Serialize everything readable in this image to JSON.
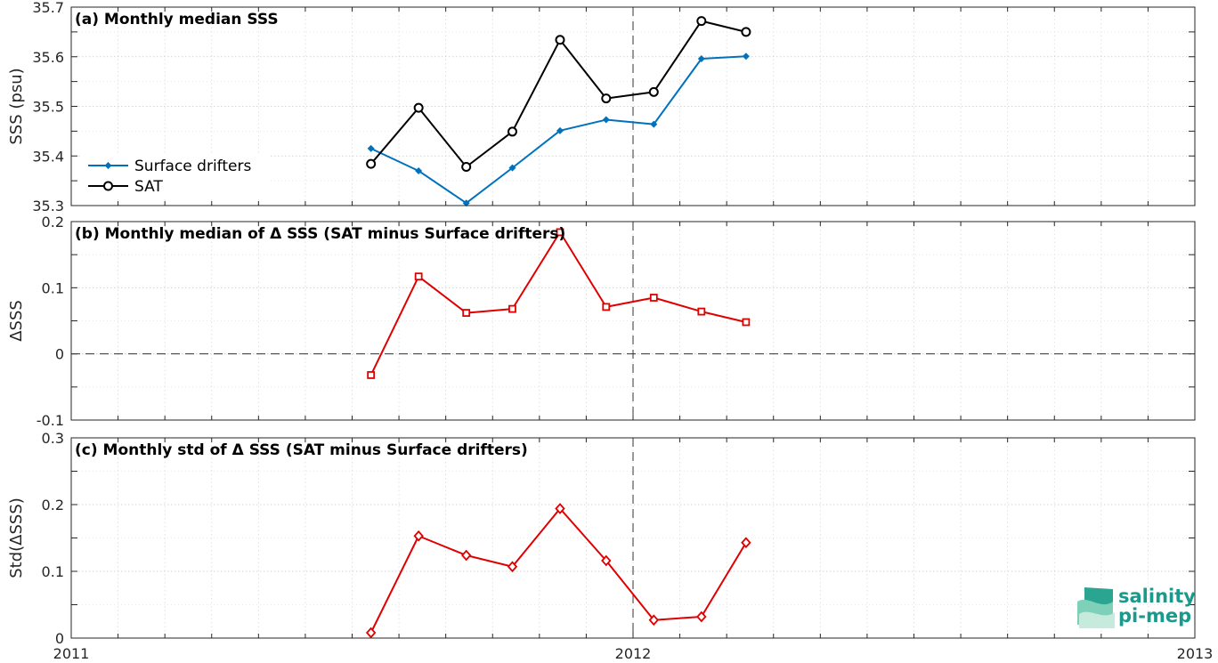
{
  "colors": {
    "drifters": "#0072bd",
    "sat": "#000000",
    "delta": "#e00000",
    "logo": "#1a9a8c"
  },
  "x_ticks": [
    "2011",
    "2012",
    "2013"
  ],
  "logo": {
    "line1": "salinity",
    "line2": "pi-mep"
  },
  "chart_data": [
    {
      "type": "line",
      "title": "(a) Monthly median SSS",
      "ylabel": "SSS (psu)",
      "ylim": [
        35.3,
        35.7
      ],
      "yticks": [
        "35.3",
        "35.4",
        "35.5",
        "35.6",
        "35.7"
      ],
      "xlim": [
        "2011-01-01",
        "2013-01-01"
      ],
      "grid": true,
      "legend_position": "center-left",
      "x": [
        "2011-07-15",
        "2011-08-15",
        "2011-09-15",
        "2011-10-15",
        "2011-11-15",
        "2011-12-15",
        "2012-01-15",
        "2012-02-15",
        "2012-03-15",
        "2012-04-15"
      ],
      "series": [
        {
          "name": "Surface drifters",
          "marker": "diamond-filled",
          "values": [
            35.415,
            35.37,
            35.305,
            35.376,
            35.451,
            35.473,
            35.464,
            35.596,
            35.601,
            null
          ]
        },
        {
          "name": "SAT",
          "marker": "circle-open",
          "values": [
            35.384,
            35.497,
            35.378,
            35.449,
            35.634,
            35.516,
            35.529,
            35.672,
            35.65,
            null
          ]
        }
      ]
    },
    {
      "type": "line",
      "title": "(b) Monthly median of Δ SSS (SAT minus Surface drifters)",
      "ylabel": "ΔSSS",
      "ylim": [
        -0.1,
        0.2
      ],
      "yticks": [
        "-0.1",
        "0",
        "0.1",
        "0.2"
      ],
      "xlim": [
        "2011-01-01",
        "2013-01-01"
      ],
      "grid": true,
      "reference_line": 0,
      "x": [
        "2011-07-15",
        "2011-08-15",
        "2011-09-15",
        "2011-10-15",
        "2011-11-15",
        "2011-12-15",
        "2012-01-15",
        "2012-02-15",
        "2012-03-15"
      ],
      "series": [
        {
          "marker": "square-open",
          "values": [
            -0.032,
            0.117,
            0.062,
            0.068,
            0.184,
            0.071,
            0.085,
            0.064,
            0.048
          ]
        }
      ]
    },
    {
      "type": "line",
      "title": "(c) Monthly std of Δ SSS (SAT minus Surface drifters)",
      "ylabel": "Std(ΔSSS)",
      "ylim": [
        0,
        0.3
      ],
      "yticks": [
        "0",
        "0.1",
        "0.2",
        "0.3"
      ],
      "xlim": [
        "2011-01-01",
        "2013-01-01"
      ],
      "grid": true,
      "x": [
        "2011-07-15",
        "2011-08-15",
        "2011-09-15",
        "2011-10-15",
        "2011-11-15",
        "2011-12-15",
        "2012-01-15",
        "2012-02-15",
        "2012-03-15"
      ],
      "series": [
        {
          "marker": "diamond-open",
          "values": [
            0.008,
            0.153,
            0.124,
            0.107,
            0.194,
            0.116,
            0.027,
            0.032,
            0.143
          ]
        }
      ]
    }
  ]
}
